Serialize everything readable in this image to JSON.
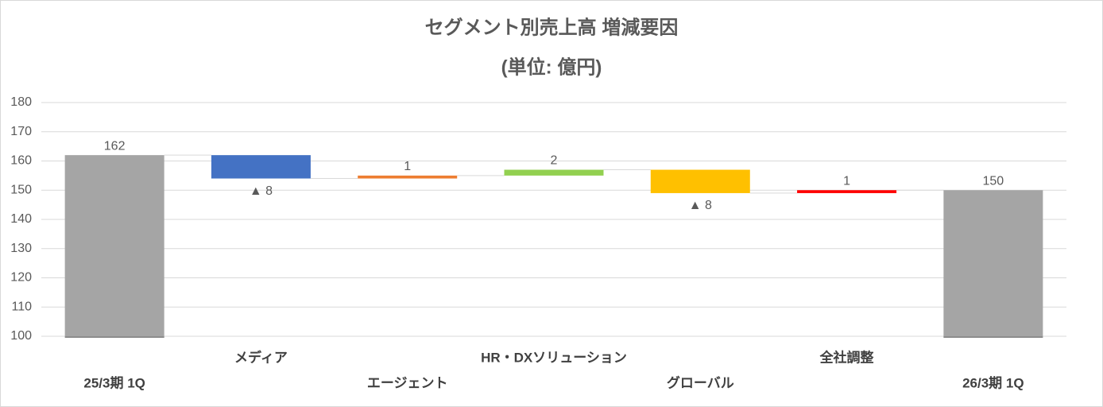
{
  "chart_data": {
    "type": "waterfall",
    "title": "セグメント別売上高 増減要因",
    "subtitle": "(単位: 億円)",
    "categories": [
      "25/3期 1Q",
      "メディア",
      "エージェント",
      "HR・DXソリューション",
      "グローバル",
      "全社調整",
      "26/3期 1Q"
    ],
    "values": [
      162,
      -8,
      1,
      2,
      -8,
      1,
      150
    ],
    "value_labels": [
      "162",
      "▲ 8",
      "1",
      "2",
      "▲ 8",
      "1",
      "150"
    ],
    "colors": [
      "#a5a5a5",
      "#4472c4",
      "#ed7d31",
      "#92d050",
      "#ffc000",
      "#ff0000",
      "#a5a5a5"
    ],
    "ylim": [
      100,
      180
    ],
    "yticks": [
      100,
      110,
      120,
      130,
      140,
      150,
      160,
      170,
      180
    ],
    "grid": true
  }
}
